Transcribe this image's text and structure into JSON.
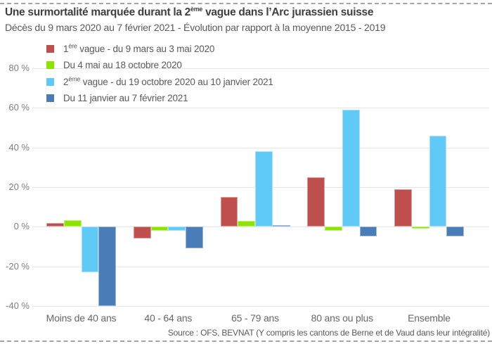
{
  "header": {
    "title": {
      "pre": "Une surmortalité marquée durant la 2",
      "sup": "ème",
      "post": " vague dans l’Arc jurassien suisse"
    },
    "subtitle": "Décès du 9 mars 2020 au 7 février 2021 - Évolution par rapport à la moyenne 2015 - 2019"
  },
  "legend": {
    "items": [
      {
        "pre": "1",
        "sup": "ère",
        "rest": " vague - du 9 mars au 3 mai 2020",
        "color": "#bf4f4d"
      },
      {
        "pre": "",
        "sup": "",
        "rest": "Du 4 mai au 18 octobre 2020",
        "color": "#8ce500"
      },
      {
        "pre": "2",
        "sup": "ème",
        "rest": " vague - du 19 octobre 2020 au 10 janvier 2021",
        "color": "#5fc9f8"
      },
      {
        "pre": "",
        "sup": "",
        "rest": "Du 11 janvier au 7 février 2021",
        "color": "#4a7cb8"
      }
    ]
  },
  "chart_data": {
    "type": "bar",
    "title": "Une surmortalité marquée durant la 2ème vague dans l’Arc jurassien suisse",
    "subtitle": "Décès du 9 mars 2020 au 7 février 2021 - Évolution par rapport à la moyenne 2015 - 2019",
    "categories": [
      "Moins de 40 ans",
      "40 - 64 ans",
      "65 - 79 ans",
      "80 ans ou plus",
      "Ensemble"
    ],
    "series": [
      {
        "name": "1ère vague - du 9 mars au 3 mai 2020",
        "color": "#bf4f4d",
        "values": [
          2,
          -6,
          15,
          25,
          19
        ]
      },
      {
        "name": "Du 4 mai au 18 octobre 2020",
        "color": "#8ce500",
        "values": [
          3.5,
          -2,
          3,
          -2,
          -1
        ]
      },
      {
        "name": "2ème vague - du 19 octobre 2020 au 10 janvier 2021",
        "color": "#5fc9f8",
        "values": [
          -23,
          -2,
          38,
          59,
          46
        ]
      },
      {
        "name": "Du 11 janvier au 7 février 2021",
        "color": "#4a7cb8",
        "values": [
          -40,
          -11,
          1,
          -5,
          -5
        ]
      }
    ],
    "yticks": [
      80,
      60,
      40,
      20,
      0,
      -20,
      -40
    ],
    "ytick_suffix": " %",
    "ylim": [
      -45,
      85
    ],
    "xlabel": "",
    "ylabel": "",
    "grid": true,
    "legend_position": "top-left"
  },
  "footer": {
    "source": "Source : OFS, BEVNAT (Y compris les cantons de Berne et de Vaud dans leur intégralité)"
  }
}
